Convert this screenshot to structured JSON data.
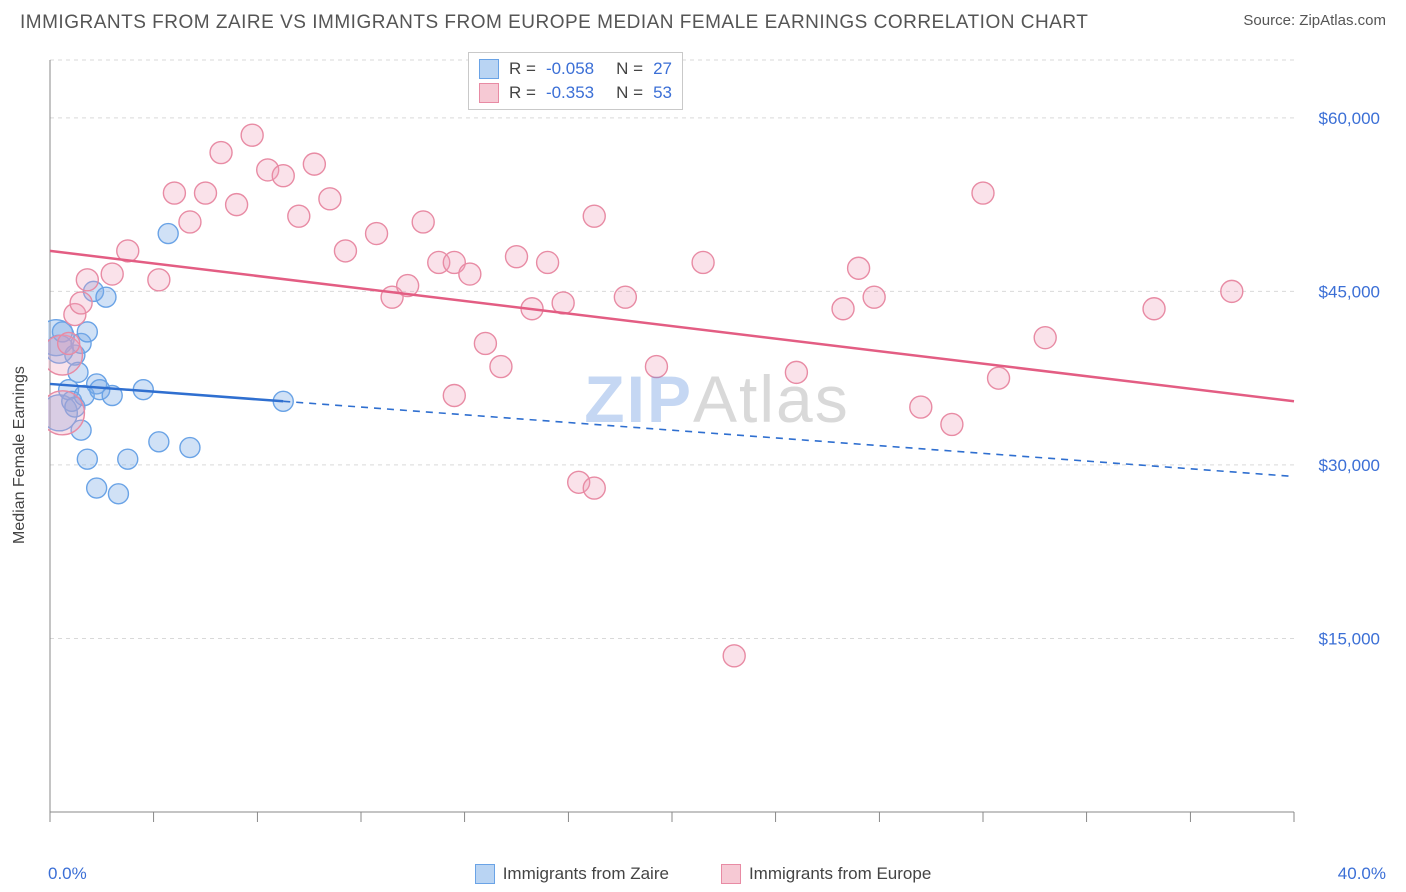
{
  "title": "IMMIGRANTS FROM ZAIRE VS IMMIGRANTS FROM EUROPE MEDIAN FEMALE EARNINGS CORRELATION CHART",
  "source_prefix": "Source: ",
  "source_name": "ZipAtlas.com",
  "y_label": "Median Female Earnings",
  "watermark_a": "ZIP",
  "watermark_b": "Atlas",
  "chart": {
    "type": "scatter",
    "background_color": "#ffffff",
    "grid_color": "#d9d9d9",
    "axis_color": "#888888",
    "xlim": [
      0,
      40
    ],
    "ylim": [
      0,
      65000
    ],
    "y_ticks": [
      15000,
      30000,
      45000,
      60000
    ],
    "y_tick_labels": [
      "$15,000",
      "$30,000",
      "$45,000",
      "$60,000"
    ],
    "x_minor_ticks": [
      0,
      3.33,
      6.67,
      10,
      13.33,
      16.67,
      20,
      23.33,
      26.67,
      30,
      33.33,
      36.67,
      40
    ],
    "x_min_label": "0.0%",
    "x_max_label": "40.0%"
  },
  "stats": {
    "rows": [
      {
        "color_fill": "#b9d4f3",
        "color_stroke": "#6aa3e6",
        "r_label": "R =",
        "r": "-0.058",
        "n_label": "N =",
        "n": "27"
      },
      {
        "color_fill": "#f6c9d4",
        "color_stroke": "#e88ba4",
        "r_label": "R =",
        "r": "-0.353",
        "n_label": "N =",
        "n": "53"
      }
    ]
  },
  "series": [
    {
      "name": "Immigrants from Zaire",
      "fill": "rgba(120,170,230,0.35)",
      "stroke": "#6aa3e6",
      "line_color": "#2f6fd0",
      "line_width": 2.5,
      "trend": {
        "x1": 0,
        "y1": 37000,
        "x2": 40,
        "y2": 29000,
        "solid_until_x": 7.5
      },
      "marker_r": 10,
      "points": [
        [
          0.2,
          41000,
          18
        ],
        [
          0.3,
          40000,
          14
        ],
        [
          0.3,
          34500,
          18
        ],
        [
          0.4,
          41500,
          10
        ],
        [
          0.6,
          36500,
          10
        ],
        [
          0.7,
          35500,
          10
        ],
        [
          0.8,
          39500,
          10
        ],
        [
          0.8,
          35000,
          10
        ],
        [
          0.9,
          38000,
          10
        ],
        [
          1.0,
          40500,
          10
        ],
        [
          1.0,
          33000,
          10
        ],
        [
          1.1,
          36000,
          10
        ],
        [
          1.2,
          41500,
          10
        ],
        [
          1.2,
          30500,
          10
        ],
        [
          1.4,
          45000,
          10
        ],
        [
          1.5,
          37000,
          10
        ],
        [
          1.5,
          28000,
          10
        ],
        [
          1.6,
          36500,
          10
        ],
        [
          1.8,
          44500,
          10
        ],
        [
          2.0,
          36000,
          10
        ],
        [
          2.2,
          27500,
          10
        ],
        [
          2.5,
          30500,
          10
        ],
        [
          3.0,
          36500,
          10
        ],
        [
          3.5,
          32000,
          10
        ],
        [
          3.8,
          50000,
          10
        ],
        [
          4.5,
          31500,
          10
        ],
        [
          7.5,
          35500,
          10
        ]
      ]
    },
    {
      "name": "Immigrants from Europe",
      "fill": "rgba(240,160,185,0.30)",
      "stroke": "#e88ba4",
      "line_color": "#e35d83",
      "line_width": 2.5,
      "trend": {
        "x1": 0,
        "y1": 48500,
        "x2": 40,
        "y2": 35500,
        "solid_until_x": 40
      },
      "marker_r": 11,
      "points": [
        [
          0.4,
          39500,
          20
        ],
        [
          0.4,
          34500,
          22
        ],
        [
          0.6,
          40500,
          11
        ],
        [
          0.8,
          43000,
          11
        ],
        [
          1.0,
          44000,
          11
        ],
        [
          1.2,
          46000,
          11
        ],
        [
          2.0,
          46500,
          11
        ],
        [
          2.5,
          48500,
          11
        ],
        [
          3.5,
          46000,
          11
        ],
        [
          4.0,
          53500,
          11
        ],
        [
          4.5,
          51000,
          11
        ],
        [
          5.0,
          53500,
          11
        ],
        [
          5.5,
          57000,
          11
        ],
        [
          6.0,
          52500,
          11
        ],
        [
          6.5,
          58500,
          11
        ],
        [
          7.0,
          55500,
          11
        ],
        [
          7.5,
          55000,
          11
        ],
        [
          8.0,
          51500,
          11
        ],
        [
          8.5,
          56000,
          11
        ],
        [
          9.0,
          53000,
          11
        ],
        [
          9.5,
          48500,
          11
        ],
        [
          10.5,
          50000,
          11
        ],
        [
          11.0,
          44500,
          11
        ],
        [
          11.5,
          45500,
          11
        ],
        [
          12.0,
          51000,
          11
        ],
        [
          12.5,
          47500,
          11
        ],
        [
          13.0,
          47500,
          11
        ],
        [
          13.0,
          36000,
          11
        ],
        [
          13.5,
          46500,
          11
        ],
        [
          14.0,
          40500,
          11
        ],
        [
          14.5,
          38500,
          11
        ],
        [
          15.0,
          48000,
          11
        ],
        [
          15.5,
          43500,
          11
        ],
        [
          16.0,
          47500,
          11
        ],
        [
          16.5,
          44000,
          11
        ],
        [
          17.0,
          28500,
          11
        ],
        [
          17.5,
          28000,
          11
        ],
        [
          17.5,
          51500,
          11
        ],
        [
          18.5,
          44500,
          11
        ],
        [
          19.5,
          38500,
          11
        ],
        [
          21.0,
          47500,
          11
        ],
        [
          22.0,
          13500,
          11
        ],
        [
          24.0,
          38000,
          11
        ],
        [
          25.5,
          43500,
          11
        ],
        [
          26.0,
          47000,
          11
        ],
        [
          26.5,
          44500,
          11
        ],
        [
          28.0,
          35000,
          11
        ],
        [
          29.0,
          33500,
          11
        ],
        [
          30.0,
          53500,
          11
        ],
        [
          30.5,
          37500,
          11
        ],
        [
          32.0,
          41000,
          11
        ],
        [
          35.5,
          43500,
          11
        ],
        [
          38.0,
          45000,
          11
        ]
      ]
    }
  ],
  "bottom_legend": [
    {
      "label": "Immigrants from Zaire",
      "fill": "#b9d4f3",
      "stroke": "#6aa3e6"
    },
    {
      "label": "Immigrants from Europe",
      "fill": "#f6c9d4",
      "stroke": "#e88ba4"
    }
  ]
}
